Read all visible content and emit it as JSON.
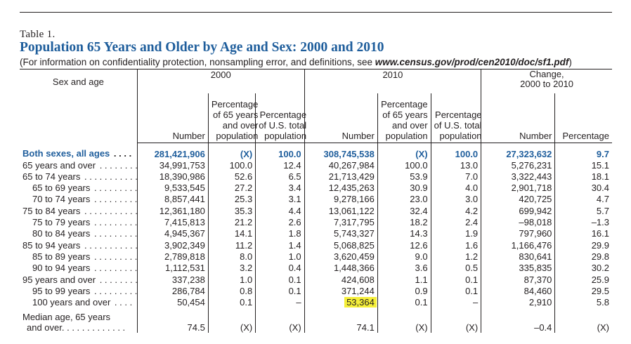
{
  "header": {
    "table_label": "Table 1.",
    "title": "Population 65 Years and Older by Age and Sex: 2000 and 2010",
    "subtitle_prefix": "(For information on confidentiality protection, nonsampling error, and definitions, see ",
    "subtitle_url": "www.census.gov/prod/cen2010/doc/sf1.pdf",
    "subtitle_suffix": ")"
  },
  "columns": {
    "sex_and_age": "Sex and age",
    "group_2000": "2000",
    "group_2010": "2010",
    "group_change_line1": "Change,",
    "group_change_line2": "2000 to 2010",
    "number": "Number",
    "pct65_line1": "Percentage",
    "pct65_line2": "of 65 years",
    "pct65_line3": "and over",
    "pct65_line4": "population",
    "pctus_line1": "Percentage",
    "pctus_line2": "of U.S. total",
    "pctus_line3": "population",
    "percentage": "Percentage"
  },
  "rows": [
    {
      "label": "Both sexes, all ages",
      "n2000": "281,421,906",
      "p65_2000": "(X)",
      "pus_2000": "100.0",
      "n2010": "308,745,538",
      "p65_2010": "(X)",
      "pus_2010": "100.0",
      "chg_n": "27,323,632",
      "chg_p": "9.7"
    },
    {
      "label": "65 years and over",
      "n2000": "34,991,753",
      "p65_2000": "100.0",
      "pus_2000": "12.4",
      "n2010": "40,267,984",
      "p65_2010": "100.0",
      "pus_2010": "13.0",
      "chg_n": "5,276,231",
      "chg_p": "15.1"
    },
    {
      "label": "65 to 74 years",
      "n2000": "18,390,986",
      "p65_2000": "52.6",
      "pus_2000": "6.5",
      "n2010": "21,713,429",
      "p65_2010": "53.9",
      "pus_2010": "7.0",
      "chg_n": "3,322,443",
      "chg_p": "18.1"
    },
    {
      "label": "65 to 69 years",
      "n2000": "9,533,545",
      "p65_2000": "27.2",
      "pus_2000": "3.4",
      "n2010": "12,435,263",
      "p65_2010": "30.9",
      "pus_2010": "4.0",
      "chg_n": "2,901,718",
      "chg_p": "30.4"
    },
    {
      "label": "70 to 74 years",
      "n2000": "8,857,441",
      "p65_2000": "25.3",
      "pus_2000": "3.1",
      "n2010": "9,278,166",
      "p65_2010": "23.0",
      "pus_2010": "3.0",
      "chg_n": "420,725",
      "chg_p": "4.7"
    },
    {
      "label": "75 to 84 years",
      "n2000": "12,361,180",
      "p65_2000": "35.3",
      "pus_2000": "4.4",
      "n2010": "13,061,122",
      "p65_2010": "32.4",
      "pus_2010": "4.2",
      "chg_n": "699,942",
      "chg_p": "5.7"
    },
    {
      "label": "75 to 79 years",
      "n2000": "7,415,813",
      "p65_2000": "21.2",
      "pus_2000": "2.6",
      "n2010": "7,317,795",
      "p65_2010": "18.2",
      "pus_2010": "2.4",
      "chg_n": "–98,018",
      "chg_p": "–1.3"
    },
    {
      "label": "80 to 84 years",
      "n2000": "4,945,367",
      "p65_2000": "14.1",
      "pus_2000": "1.8",
      "n2010": "5,743,327",
      "p65_2010": "14.3",
      "pus_2010": "1.9",
      "chg_n": "797,960",
      "chg_p": "16.1"
    },
    {
      "label": "85 to 94 years",
      "n2000": "3,902,349",
      "p65_2000": "11.2",
      "pus_2000": "1.4",
      "n2010": "5,068,825",
      "p65_2010": "12.6",
      "pus_2010": "1.6",
      "chg_n": "1,166,476",
      "chg_p": "29.9"
    },
    {
      "label": "85 to 89 years",
      "n2000": "2,789,818",
      "p65_2000": "8.0",
      "pus_2000": "1.0",
      "n2010": "3,620,459",
      "p65_2010": "9.0",
      "pus_2010": "1.2",
      "chg_n": "830,641",
      "chg_p": "29.8"
    },
    {
      "label": "90 to 94 years",
      "n2000": "1,112,531",
      "p65_2000": "3.2",
      "pus_2000": "0.4",
      "n2010": "1,448,366",
      "p65_2010": "3.6",
      "pus_2010": "0.5",
      "chg_n": "335,835",
      "chg_p": "30.2"
    },
    {
      "label": "95 years and over",
      "n2000": "337,238",
      "p65_2000": "1.0",
      "pus_2000": "0.1",
      "n2010": "424,608",
      "p65_2010": "1.1",
      "pus_2010": "0.1",
      "chg_n": "87,370",
      "chg_p": "25.9"
    },
    {
      "label": "95 to 99 years",
      "n2000": "286,784",
      "p65_2000": "0.8",
      "pus_2000": "0.1",
      "n2010": "371,244",
      "p65_2010": "0.9",
      "pus_2010": "0.1",
      "chg_n": "84,460",
      "chg_p": "29.5"
    },
    {
      "label": "100 years and over",
      "n2000": "50,454",
      "p65_2000": "0.1",
      "pus_2000": "–",
      "n2010": "53,364",
      "p65_2010": "0.1",
      "pus_2010": "–",
      "chg_n": "2,910",
      "chg_p": "5.8"
    },
    {
      "label_line1": "Median age, 65 years",
      "label_line2": "and over",
      "n2000": "74.5",
      "p65_2000": "(X)",
      "pus_2000": "(X)",
      "n2010": "74.1",
      "p65_2010": "(X)",
      "pus_2010": "(X)",
      "chg_n": "–0.4",
      "chg_p": "(X)"
    }
  ],
  "highlight_color": "#f5ef39",
  "title_color": "#1f5e9c"
}
